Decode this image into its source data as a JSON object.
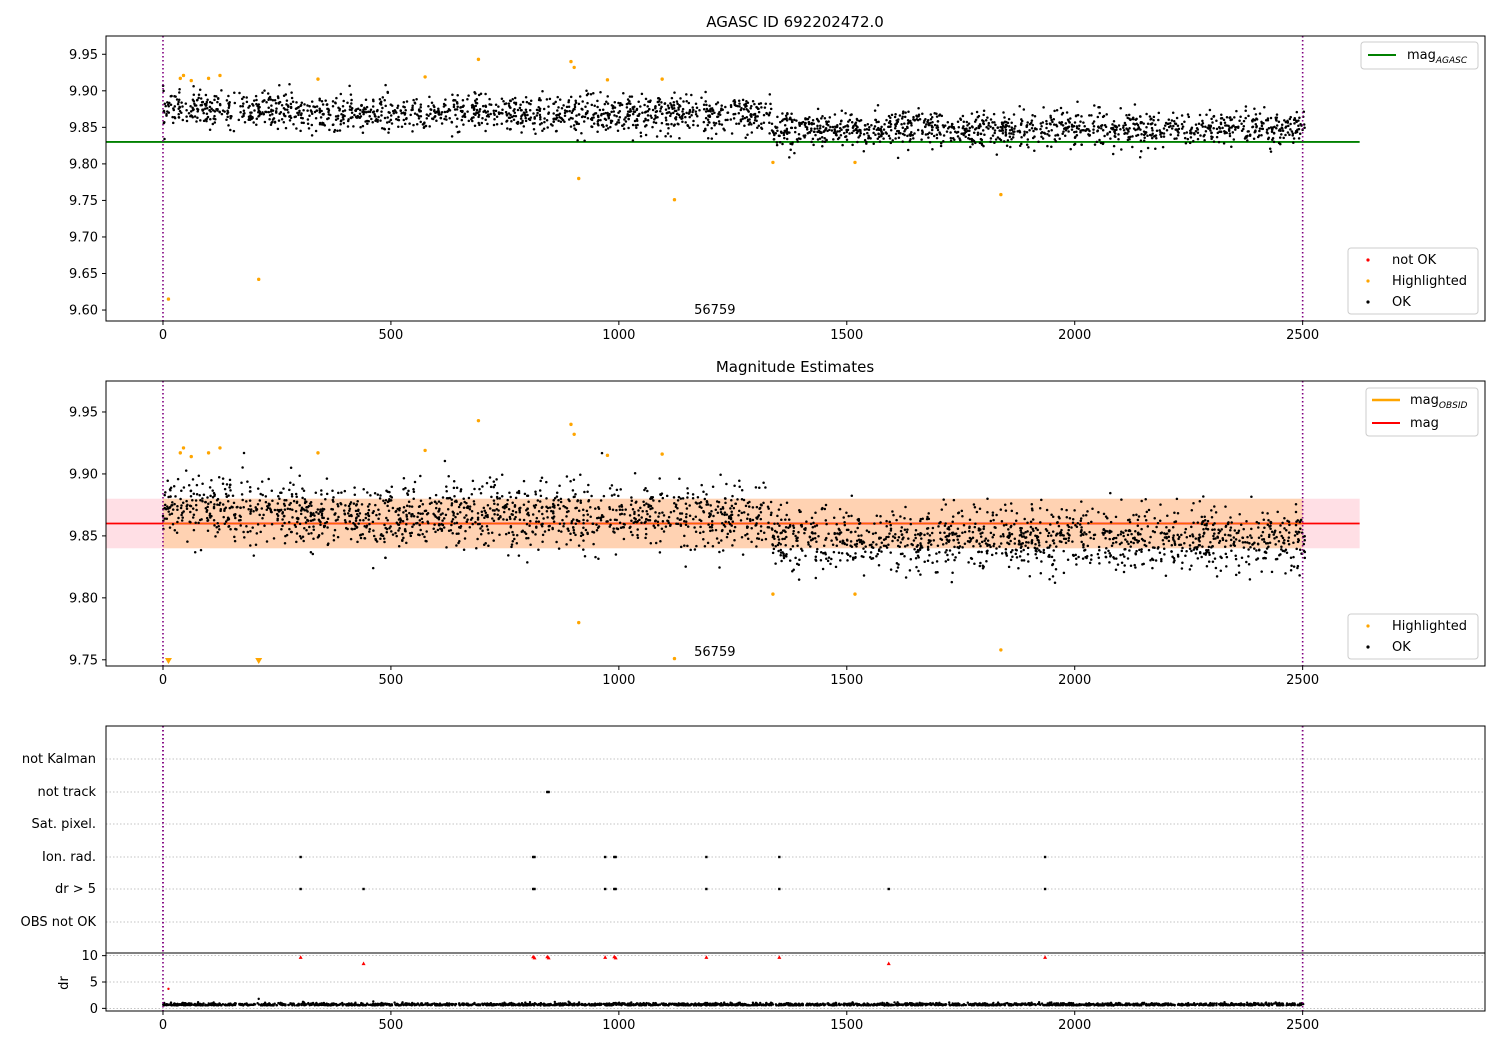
{
  "chart_data": [
    {
      "id": "agasc",
      "type": "scatter",
      "title": "AGASC ID 692202472.0",
      "xlim": [
        -125,
        2900
      ],
      "ylim": [
        9.585,
        9.975
      ],
      "xticks": [
        0,
        500,
        1000,
        1500,
        2000,
        2500
      ],
      "yticks": [
        9.6,
        9.65,
        9.7,
        9.75,
        9.8,
        9.85,
        9.9,
        9.95
      ],
      "vlines": [
        0,
        2500
      ],
      "annotation": {
        "text": "56759",
        "x": 1250,
        "y": 9.6
      },
      "reference_line": {
        "name": "mag_AGASC",
        "label_main": "mag",
        "label_sub": "AGASC",
        "y": 9.83,
        "x_range": [
          -125,
          2625
        ],
        "color": "#008000"
      },
      "legend_lines": [
        {
          "label_main": "mag",
          "label_sub": "AGASC",
          "color": "#008000"
        }
      ],
      "legend_points": [
        {
          "label": "not OK",
          "color": "#ff0000"
        },
        {
          "label": "Highlighted",
          "color": "#ffa500"
        },
        {
          "label": "OK",
          "color": "#000000"
        }
      ],
      "ok_segments": [
        {
          "x_range": [
            0,
            300
          ],
          "center": 9.875,
          "spread": 0.028
        },
        {
          "x_range": [
            300,
            1335
          ],
          "center": 9.868,
          "spread": 0.03
        },
        {
          "x_range": [
            1335,
            2505
          ],
          "center": 9.848,
          "spread": 0.028
        }
      ],
      "highlighted_points": [
        [
          12,
          9.615
        ],
        [
          38,
          9.917
        ],
        [
          45,
          9.921
        ],
        [
          62,
          9.914
        ],
        [
          100,
          9.917
        ],
        [
          125,
          9.921
        ],
        [
          210,
          9.642
        ],
        [
          340,
          9.916
        ],
        [
          575,
          9.919
        ],
        [
          692,
          9.943
        ],
        [
          895,
          9.94
        ],
        [
          902,
          9.932
        ],
        [
          912,
          9.78
        ],
        [
          975,
          9.915
        ],
        [
          1095,
          9.916
        ],
        [
          1122,
          9.751
        ],
        [
          1338,
          9.802
        ],
        [
          1518,
          9.802
        ],
        [
          1838,
          9.758
        ]
      ],
      "not_ok_points": []
    },
    {
      "id": "estimates",
      "type": "scatter",
      "title": "Magnitude Estimates",
      "xlim": [
        -125,
        2900
      ],
      "ylim": [
        9.745,
        9.975
      ],
      "xticks": [
        0,
        500,
        1000,
        1500,
        2000,
        2500
      ],
      "yticks": [
        9.75,
        9.8,
        9.85,
        9.9,
        9.95
      ],
      "vlines": [
        0,
        2500
      ],
      "annotation": {
        "text": "56759",
        "x": 1250,
        "y": 9.75
      },
      "mean_line": {
        "name": "mag",
        "y": 9.86,
        "x_range": [
          -125,
          2625
        ],
        "color": "#ff0000"
      },
      "band_outer": {
        "y_range": [
          9.84,
          9.88
        ],
        "x_range": [
          -125,
          2625
        ],
        "color": "#ffc0cb"
      },
      "band_inner": {
        "y_range": [
          9.84,
          9.88
        ],
        "x_range": [
          0,
          2500
        ],
        "color": "#ffa500"
      },
      "legend_lines": [
        {
          "label_main": "mag",
          "label_sub": "OBSID",
          "color": "#ffa500"
        },
        {
          "label_main": "mag",
          "label_sub": "",
          "color": "#ff0000"
        }
      ],
      "legend_points": [
        {
          "label": "Highlighted",
          "color": "#ffa500"
        },
        {
          "label": "OK",
          "color": "#000000"
        }
      ],
      "ok_segments": [
        {
          "x_range": [
            0,
            300
          ],
          "center": 9.872,
          "spread": 0.03
        },
        {
          "x_range": [
            300,
            1335
          ],
          "center": 9.866,
          "spread": 0.032
        },
        {
          "x_range": [
            1335,
            2505
          ],
          "center": 9.847,
          "spread": 0.03
        }
      ],
      "highlighted_points": [
        [
          38,
          9.917
        ],
        [
          45,
          9.921
        ],
        [
          62,
          9.914
        ],
        [
          100,
          9.917
        ],
        [
          125,
          9.921
        ],
        [
          340,
          9.917
        ],
        [
          575,
          9.919
        ],
        [
          692,
          9.943
        ],
        [
          895,
          9.94
        ],
        [
          902,
          9.932
        ],
        [
          912,
          9.78
        ],
        [
          975,
          9.915
        ],
        [
          1095,
          9.916
        ],
        [
          1122,
          9.751
        ],
        [
          1338,
          9.803
        ],
        [
          1518,
          9.803
        ],
        [
          1838,
          9.758
        ]
      ],
      "offscale_markers": [
        [
          12,
          9.749
        ],
        [
          210,
          9.749
        ]
      ]
    },
    {
      "id": "flags",
      "type": "scatter",
      "xlim": [
        -125,
        2900
      ],
      "vlines": [
        0,
        2500
      ],
      "categories": [
        "OBS not OK",
        "dr > 5",
        "Ion. rad.",
        "Sat. pixel.",
        "not track",
        "not Kalman"
      ],
      "flag_points": {
        "not track": [
          843,
          846
        ],
        "Ion. rad.": [
          302,
          812,
          815,
          970,
          990,
          993,
          1192,
          1352,
          1935
        ],
        "dr > 5": [
          302,
          440,
          812,
          815,
          970,
          990,
          993,
          1192,
          1352,
          1592,
          1935
        ]
      }
    },
    {
      "id": "dr",
      "type": "scatter",
      "ylabel": "dr",
      "xlim": [
        -125,
        2900
      ],
      "ylim": [
        -0.5,
        10.5
      ],
      "xticks": [
        0,
        500,
        1000,
        1500,
        2000,
        2500
      ],
      "yticks": [
        0,
        5,
        10
      ],
      "vlines": [
        0,
        2500
      ],
      "baseline": {
        "x_range": [
          0,
          2505
        ],
        "center": 0.55,
        "spread": 0.35
      },
      "triangle_points": [
        [
          302,
          9.7
        ],
        [
          440,
          8.5
        ],
        [
          812,
          9.8
        ],
        [
          815,
          9.6
        ],
        [
          843,
          9.8
        ],
        [
          846,
          9.6
        ],
        [
          970,
          9.7
        ],
        [
          990,
          9.8
        ],
        [
          993,
          9.6
        ],
        [
          1192,
          9.7
        ],
        [
          1352,
          9.7
        ],
        [
          1592,
          8.5
        ],
        [
          1935,
          9.7
        ]
      ],
      "outlier_points": [
        [
          12,
          3.7
        ],
        [
          210,
          1.8
        ]
      ]
    }
  ]
}
